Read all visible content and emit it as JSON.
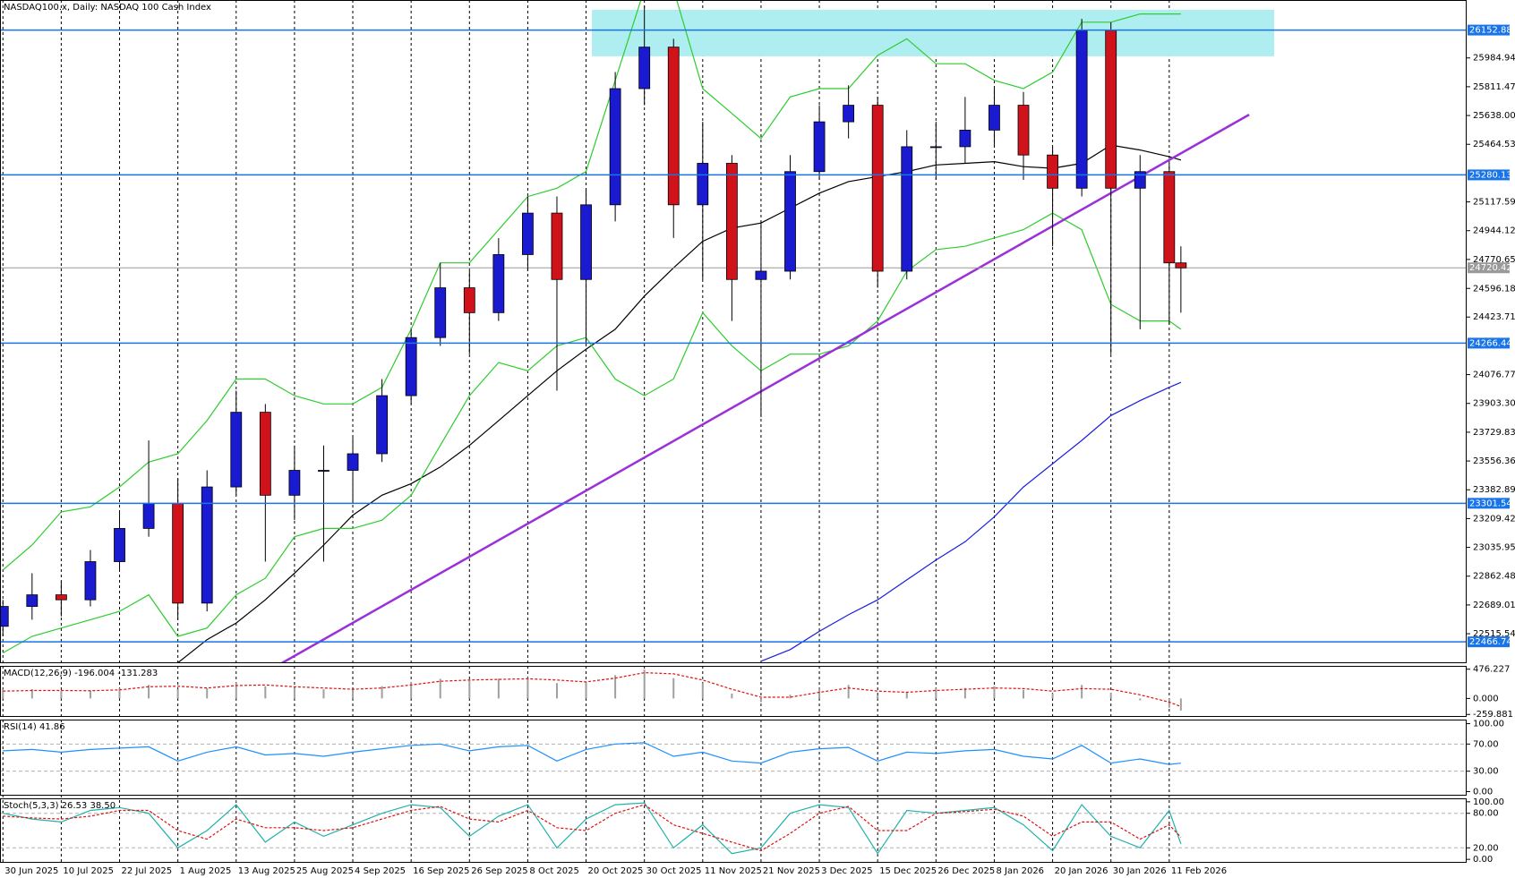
{
  "chart_data": [
    {
      "type": "candlestick",
      "title": "NASDAQ100.x, Daily:  NASDAQ 100 Cash Index",
      "x": [
        0,
        5,
        10,
        15,
        20,
        25,
        30,
        35,
        40,
        45,
        50,
        55,
        60,
        65,
        70,
        75,
        80,
        85,
        90,
        95,
        100,
        105,
        110,
        115,
        120,
        125,
        130,
        135,
        140,
        145,
        150,
        155,
        160,
        165,
        170,
        175,
        180,
        185,
        190,
        195,
        200,
        202
      ],
      "xlim": [
        -0.5,
        251
      ],
      "xticks": [
        {
          "value": 0,
          "label": "30 Jun 2025"
        },
        {
          "value": 10,
          "label": "10 Jul 2025"
        },
        {
          "value": 20,
          "label": "22 Jul 2025"
        },
        {
          "value": 30,
          "label": "1 Aug 2025"
        },
        {
          "value": 40,
          "label": "13 Aug 2025"
        },
        {
          "value": 50,
          "label": "25 Aug 2025"
        },
        {
          "value": 60,
          "label": "4 Sep 2025"
        },
        {
          "value": 70,
          "label": "16 Sep 2025"
        },
        {
          "value": 80,
          "label": "26 Sep 2025"
        },
        {
          "value": 90,
          "label": "8 Oct 2025"
        },
        {
          "value": 100,
          "label": "20 Oct 2025"
        },
        {
          "value": 110,
          "label": "30 Oct 2025"
        },
        {
          "value": 120,
          "label": "11 Nov 2025"
        },
        {
          "value": 130,
          "label": "21 Nov 2025"
        },
        {
          "value": 140,
          "label": "3 Dec 2025"
        },
        {
          "value": 150,
          "label": "15 Dec 2025"
        },
        {
          "value": 160,
          "label": "26 Dec 2025"
        },
        {
          "value": 170,
          "label": "8 Jan 2026"
        },
        {
          "value": 180,
          "label": "20 Jan 2026"
        },
        {
          "value": 190,
          "label": "30 Jan 2026"
        },
        {
          "value": 200,
          "label": "11 Feb 2026"
        }
      ],
      "ylim": [
        22338,
        26334
      ],
      "yticks": [
        25984.94,
        25811.47,
        {
          "value": 25638,
          "label": "25638.00"
        },
        25464.53,
        25117.59,
        24944.12,
        24770.65,
        24596.18,
        24423.71,
        24076.77,
        {
          "value": 23903.3,
          "label": "23903.30"
        },
        23729.83,
        23556.36,
        23382.89,
        23209.42,
        23035.95,
        22862.48,
        22689.01,
        22515.54
      ],
      "up_color": "#1a1ad1",
      "down_color": "#d0121b",
      "open": [
        22560,
        22680,
        22750,
        22720,
        22950,
        23150,
        23300,
        22700,
        23400,
        23850,
        23350,
        23500,
        23500,
        23600,
        23950,
        24300,
        24600,
        24450,
        24800,
        25050,
        24650,
        25100,
        25800,
        26050,
        25100,
        25350,
        24650,
        24700,
        25300,
        25600,
        25700,
        24700,
        25450,
        25450,
        25550,
        25700,
        25400,
        25200,
        26150,
        25200,
        25300,
        24750
      ],
      "high": [
        22720,
        22880,
        22830,
        23020,
        23250,
        23680,
        23450,
        23500,
        23980,
        23900,
        23650,
        23650,
        23700,
        24050,
        24350,
        24750,
        24700,
        24900,
        25150,
        25150,
        25200,
        25900,
        26300,
        26100,
        25600,
        25400,
        25000,
        25400,
        25700,
        25820,
        25750,
        25550,
        25600,
        25750,
        25800,
        25780,
        25450,
        26220,
        26200,
        25400,
        25350,
        24850
      ],
      "low": [
        22500,
        22600,
        22620,
        22680,
        22900,
        23100,
        22600,
        22650,
        23350,
        22950,
        23200,
        22950,
        23300,
        23550,
        23900,
        24250,
        24200,
        24400,
        24700,
        23980,
        24250,
        25000,
        25700,
        24900,
        24650,
        24400,
        23820,
        24650,
        25250,
        25500,
        24600,
        24650,
        25250,
        25350,
        25450,
        25250,
        24850,
        25150,
        24200,
        24350,
        24380,
        24450
      ],
      "close": [
        22680,
        22750,
        22720,
        22950,
        23150,
        23300,
        22700,
        23400,
        23850,
        23350,
        23500,
        23500,
        23600,
        23950,
        24300,
        24600,
        24450,
        24800,
        25050,
        24650,
        25100,
        25800,
        26050,
        25100,
        25350,
        24650,
        24700,
        25300,
        25600,
        25700,
        24700,
        25450,
        25450,
        25550,
        25700,
        25400,
        25200,
        26150,
        25200,
        25300,
        24750,
        24720
      ],
      "lines": [
        {
          "color": "#000000",
          "values": [
            null,
            null,
            null,
            null,
            null,
            null,
            22340,
            22480,
            22580,
            22720,
            22880,
            23050,
            23230,
            23350,
            23420,
            23520,
            23650,
            23800,
            23950,
            24100,
            24230,
            24350,
            24550,
            24720,
            24880,
            24960,
            24990,
            25080,
            25170,
            25240,
            25270,
            25300,
            25340,
            25350,
            25360,
            25330,
            25320,
            25350,
            25460,
            25430,
            25390,
            25370
          ]
        },
        {
          "color": "#1c1ce0",
          "values": [
            null,
            null,
            null,
            null,
            null,
            null,
            null,
            null,
            null,
            null,
            null,
            null,
            null,
            null,
            null,
            null,
            null,
            null,
            null,
            null,
            null,
            null,
            null,
            null,
            null,
            null,
            22350,
            22420,
            22530,
            22630,
            22720,
            22840,
            22960,
            23070,
            23220,
            23400,
            23540,
            23680,
            23830,
            23920,
            24000,
            24030
          ]
        },
        {
          "color": "#2ecc2e",
          "values": [
            22900,
            23050,
            23250,
            23280,
            23400,
            23550,
            23600,
            23800,
            24050,
            24050,
            23950,
            23900,
            23900,
            24000,
            24350,
            24750,
            24750,
            24950,
            25150,
            25200,
            25300,
            25850,
            26400,
            26400,
            25800,
            25650,
            25500,
            25750,
            25800,
            25800,
            26000,
            26100,
            25950,
            25950,
            25850,
            25800,
            25900,
            26200,
            26200,
            26250,
            26250,
            26250
          ]
        },
        {
          "color": "#2ecc2e",
          "values": [
            22400,
            22500,
            22550,
            22600,
            22650,
            22750,
            22500,
            22550,
            22750,
            22850,
            23100,
            23150,
            23150,
            23200,
            23350,
            23650,
            23950,
            24150,
            24100,
            24250,
            24300,
            24050,
            23950,
            24050,
            24450,
            24250,
            24100,
            24200,
            24200,
            24250,
            24400,
            24700,
            24830,
            24850,
            24900,
            24950,
            25050,
            24950,
            24500,
            24400,
            24400,
            24350
          ]
        }
      ],
      "levels": [
        26152.88,
        25280.13,
        24266.44,
        23301.54,
        22466.74
      ],
      "level_color": "#1874e8",
      "current_price": 24720.42,
      "zone": {
        "x": [
          101,
          218
        ],
        "y": [
          25995,
          26275
        ],
        "color": "#aeeef0"
      },
      "trendline": {
        "x": [
          47.8,
          213.7
        ],
        "y": [
          22338,
          25643
        ],
        "color": "#9b30d9"
      }
    },
    {
      "type": "macd",
      "title": "MACD(12,26,9) -196.004 -131.283",
      "x": [
        0,
        5,
        10,
        15,
        20,
        25,
        30,
        35,
        40,
        45,
        50,
        55,
        60,
        65,
        70,
        75,
        80,
        85,
        90,
        95,
        100,
        105,
        110,
        115,
        120,
        125,
        130,
        135,
        140,
        145,
        150,
        155,
        160,
        165,
        170,
        175,
        180,
        185,
        190,
        195,
        200,
        202
      ],
      "ylim": [
        -300,
        530
      ],
      "yticks": [
        476.227,
        {
          "value": 0,
          "label": "0.000"
        },
        -259.881
      ],
      "series": [
        {
          "style": "bar",
          "color": "#a0a0a0",
          "values": [
            150,
            150,
            120,
            130,
            170,
            220,
            150,
            170,
            260,
            200,
            170,
            150,
            140,
            200,
            270,
            320,
            300,
            320,
            340,
            250,
            260,
            380,
            470,
            330,
            250,
            80,
            -60,
            60,
            160,
            220,
            50,
            100,
            170,
            170,
            200,
            140,
            80,
            220,
            90,
            -30,
            -150,
            -196.004
          ]
        },
        {
          "style": "line",
          "dash": true,
          "color": "#e01010",
          "values": [
            120,
            130,
            130,
            125,
            140,
            190,
            200,
            170,
            210,
            220,
            190,
            170,
            150,
            170,
            220,
            280,
            300,
            310,
            320,
            300,
            270,
            330,
            420,
            400,
            300,
            150,
            20,
            20,
            100,
            170,
            120,
            100,
            130,
            150,
            170,
            160,
            120,
            160,
            150,
            60,
            -60,
            -131.283
          ]
        }
      ]
    },
    {
      "type": "line",
      "title": "RSI(14) 41.86",
      "x": [
        0,
        5,
        10,
        15,
        20,
        25,
        30,
        35,
        40,
        45,
        50,
        55,
        60,
        65,
        70,
        75,
        80,
        85,
        90,
        95,
        100,
        105,
        110,
        115,
        120,
        125,
        130,
        135,
        140,
        145,
        150,
        155,
        160,
        165,
        170,
        175,
        180,
        185,
        190,
        195,
        200,
        202
      ],
      "ylim": [
        -6,
        106
      ],
      "yticks": [
        {
          "value": 100,
          "label": "100.00"
        },
        {
          "value": 70,
          "label": "70.00"
        },
        {
          "value": 30,
          "label": "30.00"
        },
        {
          "value": 0,
          "label": "0.00"
        }
      ],
      "level_lines": [
        70,
        30
      ],
      "series": [
        {
          "style": "line",
          "color": "#1e90ff",
          "values": [
            60,
            62,
            58,
            62,
            64,
            66,
            45,
            58,
            66,
            54,
            56,
            52,
            58,
            63,
            68,
            70,
            60,
            66,
            68,
            45,
            62,
            70,
            72,
            52,
            58,
            45,
            42,
            58,
            63,
            65,
            45,
            58,
            56,
            60,
            62,
            52,
            48,
            68,
            42,
            48,
            40,
            41.86
          ]
        }
      ]
    },
    {
      "type": "line",
      "title": "Stoch(5,3,3) 26.53 38.50",
      "x": [
        0,
        5,
        10,
        15,
        20,
        25,
        30,
        35,
        40,
        45,
        50,
        55,
        60,
        65,
        70,
        75,
        80,
        85,
        90,
        95,
        100,
        105,
        110,
        115,
        120,
        125,
        130,
        135,
        140,
        145,
        150,
        155,
        160,
        165,
        170,
        175,
        180,
        185,
        190,
        195,
        200,
        202
      ],
      "ylim": [
        -6,
        106
      ],
      "yticks": [
        {
          "value": 100,
          "label": "100.00"
        },
        {
          "value": 80,
          "label": "80.00"
        },
        {
          "value": 20,
          "label": "20.00"
        },
        {
          "value": 0,
          "label": "0.00"
        }
      ],
      "level_lines": [
        80,
        20
      ],
      "series": [
        {
          "style": "line",
          "color": "#20b2aa",
          "values": [
            80,
            70,
            65,
            85,
            90,
            80,
            20,
            50,
            95,
            30,
            65,
            40,
            60,
            80,
            95,
            90,
            40,
            75,
            95,
            20,
            70,
            95,
            98,
            20,
            60,
            10,
            20,
            80,
            95,
            90,
            10,
            85,
            80,
            85,
            90,
            60,
            15,
            95,
            40,
            20,
            85,
            26.53
          ]
        },
        {
          "style": "line",
          "dash": true,
          "color": "#e01010",
          "values": [
            75,
            72,
            70,
            75,
            85,
            85,
            50,
            35,
            70,
            55,
            55,
            50,
            55,
            70,
            85,
            92,
            70,
            65,
            85,
            55,
            50,
            80,
            95,
            60,
            45,
            30,
            15,
            45,
            80,
            92,
            50,
            50,
            80,
            83,
            87,
            75,
            40,
            65,
            65,
            35,
            60,
            38.5
          ]
        }
      ]
    }
  ]
}
